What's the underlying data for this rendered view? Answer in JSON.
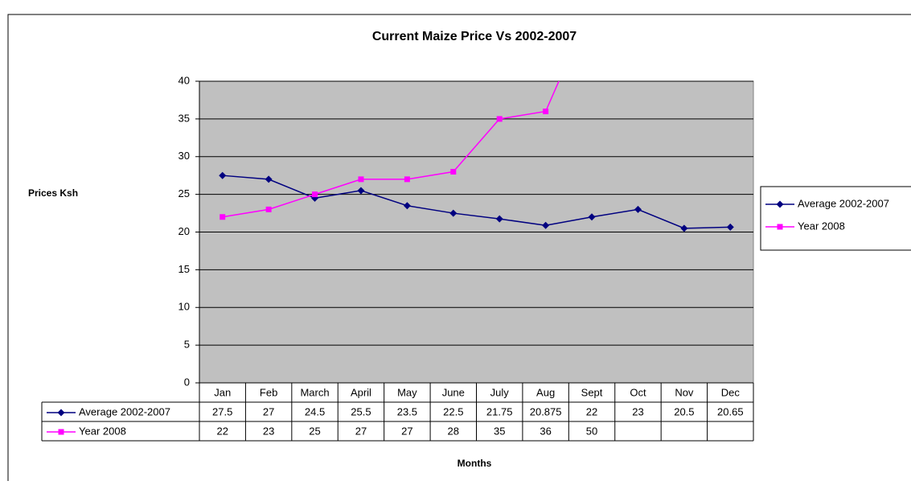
{
  "chart_data": {
    "type": "line",
    "title": "Current Maize Price Vs 2002-2007",
    "y_label": "Prices Ksh",
    "x_label": "Months",
    "categories": [
      "Jan",
      "Feb",
      "March",
      "April",
      "May",
      "June",
      "July",
      "Aug",
      "Sept",
      "Oct",
      "Nov",
      "Dec"
    ],
    "series": [
      {
        "name": "Average 2002-2007",
        "color": "#000080",
        "marker": "diamond",
        "values": [
          27.5,
          27,
          24.5,
          25.5,
          23.5,
          22.5,
          21.75,
          20.875,
          22,
          23,
          20.5,
          20.65
        ]
      },
      {
        "name": "Year 2008",
        "color": "#ff00ff",
        "marker": "square",
        "values": [
          22,
          23,
          25,
          27,
          27,
          28,
          35,
          36,
          50,
          null,
          null,
          null
        ]
      }
    ],
    "ylim": [
      0,
      40
    ],
    "yticks": [
      0,
      5,
      10,
      15,
      20,
      25,
      30,
      35,
      40
    ],
    "grid": true,
    "legend": "right",
    "data_table": true
  }
}
